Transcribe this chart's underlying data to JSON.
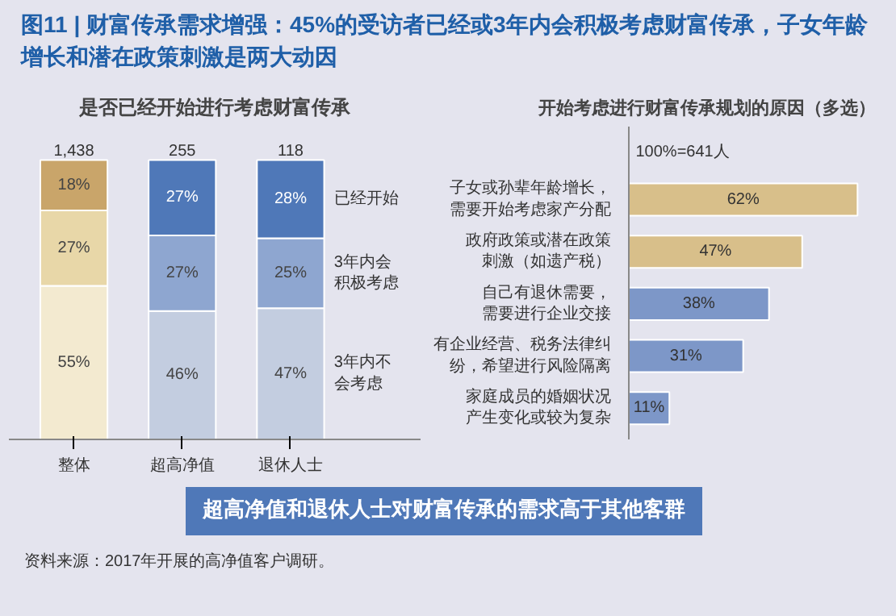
{
  "chart_data": [
    {
      "type": "bar",
      "stacked": true,
      "title": "图11 | 财富传承需求增强：45%的受访者已经或3年内会积极考虑财富传承，子女年龄增长和潜在政策刺激是两大动因",
      "subtitle": "是否已经开始进行考虑财富传承",
      "categories": [
        "整体",
        "超高净值",
        "退休人士"
      ],
      "tick_labels": "x",
      "annotations": [
        {
          "text": "1,438",
          "x": "整体",
          "y": 100
        },
        {
          "text": "255",
          "x": "超高净值",
          "y": 100
        },
        {
          "text": "118",
          "x": "退休人士",
          "y": 100
        }
      ],
      "series": [
        {
          "name": "3年内不会考虑",
          "colors": [
            "#f3ead0",
            "#c3cde0",
            "#c3cde0"
          ],
          "values": [
            55,
            46,
            47
          ],
          "value_labels": [
            "55%",
            "46%",
            "47%"
          ]
        },
        {
          "name": "3年内会积极考虑",
          "colors": [
            "#e8d7a8",
            "#8ea6d0",
            "#8ea6d0"
          ],
          "values": [
            27,
            27,
            25
          ],
          "value_labels": [
            "27%",
            "27%",
            "25%"
          ]
        },
        {
          "name": "已经开始",
          "colors": [
            "#c9a56a",
            "#4f78b8",
            "#4f78b8"
          ],
          "values": [
            18,
            27,
            28
          ],
          "value_labels": [
            "18%",
            "27%",
            "28%"
          ]
        }
      ]
    },
    {
      "type": "bar",
      "orientation": "horizontal",
      "title": "开始考虑进行财富传承规划的原因（多选）",
      "subtitle": "100%=641人",
      "tick_labels": "y",
      "categories": [
        "子女或孙辈年龄增长，需要开始考虑家产分配",
        "政府政策或潜在政策刺激（如遗产税）",
        "自己有退休需要，需要进行企业交接",
        "有企业经营、税务法律纠纷，希望进行风险隔离",
        "家庭成员的婚姻状况产生变化或较为复杂"
      ],
      "values": [
        62,
        47,
        38,
        31,
        11
      ],
      "colors": [
        "#d8bf8a",
        "#d8bf8a",
        "#7d97c8",
        "#7d97c8",
        "#7d97c8"
      ],
      "value_labels": [
        "62%",
        "47%",
        "38%",
        "31%",
        "11%"
      ],
      "annotations": [
        "超高净值和退休人士对财富传承的需求高于其他客群",
        "资料来源：2017年开展的高净值客户调研。"
      ]
    }
  ]
}
